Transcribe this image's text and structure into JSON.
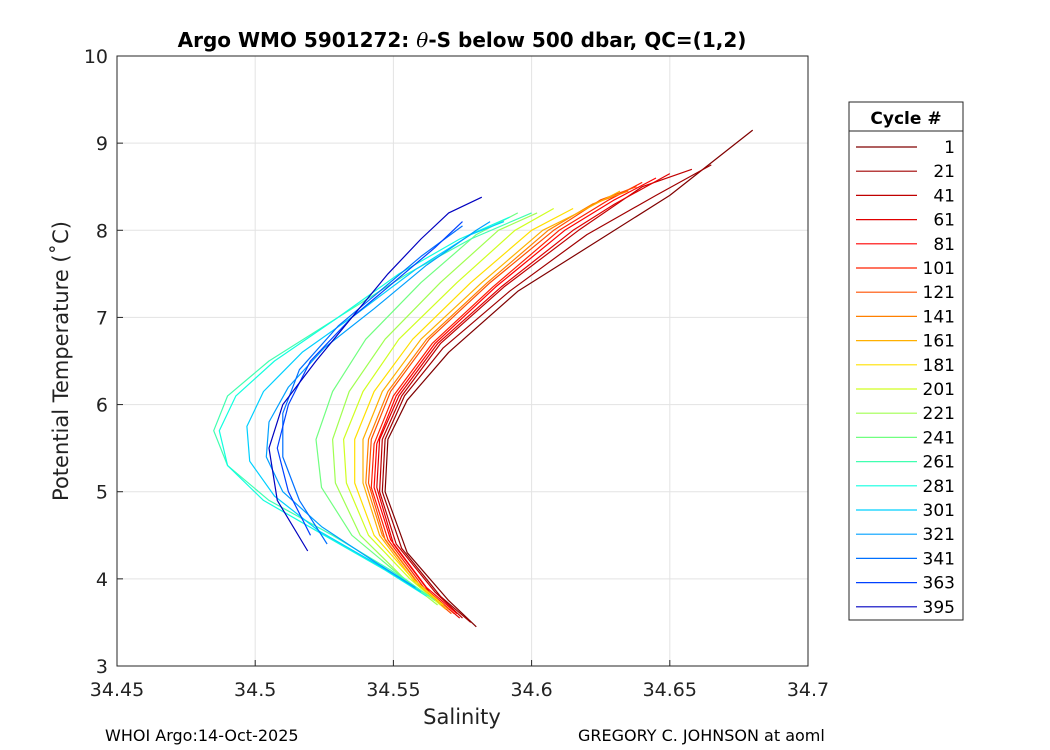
{
  "chart_data": {
    "type": "line",
    "title_prefix": "Argo WMO 5901272: ",
    "title_theta": "θ",
    "title_suffix": "-S below 500 dbar,  QC=(1,2)",
    "xlabel": "Salinity",
    "ylabel": "Potential Temperature (˚C)",
    "xlim": [
      34.45,
      34.7
    ],
    "ylim": [
      3,
      10
    ],
    "xticks": [
      34.45,
      34.5,
      34.55,
      34.6,
      34.65,
      34.7
    ],
    "xtick_labels": [
      "34.45",
      "34.5",
      "34.55",
      "34.6",
      "34.65",
      "34.7"
    ],
    "yticks": [
      3,
      4,
      5,
      6,
      7,
      8,
      9,
      10
    ],
    "ytick_labels": [
      "3",
      "4",
      "5",
      "6",
      "7",
      "8",
      "9",
      "10"
    ],
    "grid": true,
    "legend": {
      "title": "Cycle #",
      "placement": "right-outside",
      "entries": [
        {
          "label": "1",
          "color": "#800000"
        },
        {
          "label": "21",
          "color": "#a00000"
        },
        {
          "label": "41",
          "color": "#c00000"
        },
        {
          "label": "61",
          "color": "#e00000"
        },
        {
          "label": "81",
          "color": "#ff0000"
        },
        {
          "label": "101",
          "color": "#ff2000"
        },
        {
          "label": "121",
          "color": "#ff5000"
        },
        {
          "label": "141",
          "color": "#ff8000"
        },
        {
          "label": "161",
          "color": "#ffb000"
        },
        {
          "label": "181",
          "color": "#ffe000"
        },
        {
          "label": "201",
          "color": "#d0ff20"
        },
        {
          "label": "221",
          "color": "#a0ff50"
        },
        {
          "label": "241",
          "color": "#70ff80"
        },
        {
          "label": "261",
          "color": "#40ffb0"
        },
        {
          "label": "281",
          "color": "#10ffe0"
        },
        {
          "label": "301",
          "color": "#00d0ff"
        },
        {
          "label": "321",
          "color": "#00a0ff"
        },
        {
          "label": "341",
          "color": "#0070ff"
        },
        {
          "label": "363",
          "color": "#0040ff"
        },
        {
          "label": "395",
          "color": "#0000c0"
        }
      ]
    },
    "series": [
      {
        "name": "1",
        "color": "#800000",
        "points": [
          [
            34.58,
            3.45
          ],
          [
            34.57,
            3.75
          ],
          [
            34.555,
            4.3
          ],
          [
            34.547,
            5.0
          ],
          [
            34.548,
            5.6
          ],
          [
            34.555,
            6.05
          ],
          [
            34.57,
            6.6
          ],
          [
            34.595,
            7.3
          ],
          [
            34.625,
            7.9
          ],
          [
            34.65,
            8.4
          ],
          [
            34.68,
            9.15
          ]
        ]
      },
      {
        "name": "21",
        "color": "#a00000",
        "points": [
          [
            34.578,
            3.5
          ],
          [
            34.567,
            3.8
          ],
          [
            34.553,
            4.35
          ],
          [
            34.546,
            5.0
          ],
          [
            34.547,
            5.6
          ],
          [
            34.554,
            6.1
          ],
          [
            34.568,
            6.65
          ],
          [
            34.592,
            7.3
          ],
          [
            34.62,
            7.95
          ],
          [
            34.645,
            8.4
          ],
          [
            34.665,
            8.75
          ]
        ]
      },
      {
        "name": "41",
        "color": "#c00000",
        "points": [
          [
            34.575,
            3.55
          ],
          [
            34.565,
            3.85
          ],
          [
            34.551,
            4.4
          ],
          [
            34.545,
            5.0
          ],
          [
            34.546,
            5.6
          ],
          [
            34.553,
            6.1
          ],
          [
            34.567,
            6.7
          ],
          [
            34.59,
            7.35
          ],
          [
            34.617,
            8.0
          ],
          [
            34.64,
            8.5
          ],
          [
            34.658,
            8.7
          ]
        ]
      },
      {
        "name": "61",
        "color": "#e00000",
        "points": [
          [
            34.574,
            3.55
          ],
          [
            34.563,
            3.85
          ],
          [
            34.55,
            4.4
          ],
          [
            34.544,
            5.05
          ],
          [
            34.545,
            5.6
          ],
          [
            34.552,
            6.1
          ],
          [
            34.566,
            6.7
          ],
          [
            34.589,
            7.35
          ],
          [
            34.615,
            8.0
          ],
          [
            34.63,
            8.3
          ],
          [
            34.65,
            8.65
          ]
        ]
      },
      {
        "name": "81",
        "color": "#ff0000",
        "points": [
          [
            34.573,
            3.6
          ],
          [
            34.562,
            3.9
          ],
          [
            34.549,
            4.45
          ],
          [
            34.543,
            5.05
          ],
          [
            34.544,
            5.55
          ],
          [
            34.551,
            6.1
          ],
          [
            34.565,
            6.7
          ],
          [
            34.587,
            7.35
          ],
          [
            34.612,
            8.0
          ],
          [
            34.63,
            8.35
          ],
          [
            34.645,
            8.6
          ]
        ]
      },
      {
        "name": "101",
        "color": "#ff2000",
        "points": [
          [
            34.572,
            3.6
          ],
          [
            34.561,
            3.9
          ],
          [
            34.548,
            4.45
          ],
          [
            34.542,
            5.05
          ],
          [
            34.543,
            5.55
          ],
          [
            34.55,
            6.1
          ],
          [
            34.564,
            6.7
          ],
          [
            34.586,
            7.35
          ],
          [
            34.61,
            8.0
          ],
          [
            34.628,
            8.35
          ],
          [
            34.64,
            8.55
          ]
        ]
      },
      {
        "name": "121",
        "color": "#ff5000",
        "points": [
          [
            34.571,
            3.6
          ],
          [
            34.56,
            3.9
          ],
          [
            34.547,
            4.45
          ],
          [
            34.541,
            5.1
          ],
          [
            34.542,
            5.6
          ],
          [
            34.549,
            6.15
          ],
          [
            34.563,
            6.75
          ],
          [
            34.585,
            7.4
          ],
          [
            34.608,
            8.0
          ],
          [
            34.625,
            8.35
          ],
          [
            34.638,
            8.5
          ]
        ]
      },
      {
        "name": "141",
        "color": "#ff8000",
        "points": [
          [
            34.57,
            3.65
          ],
          [
            34.559,
            3.95
          ],
          [
            34.546,
            4.5
          ],
          [
            34.54,
            5.1
          ],
          [
            34.541,
            5.6
          ],
          [
            34.548,
            6.15
          ],
          [
            34.562,
            6.75
          ],
          [
            34.584,
            7.4
          ],
          [
            34.606,
            8.0
          ],
          [
            34.622,
            8.3
          ],
          [
            34.635,
            8.45
          ]
        ]
      },
      {
        "name": "161",
        "color": "#ffb000",
        "points": [
          [
            34.569,
            3.65
          ],
          [
            34.558,
            3.95
          ],
          [
            34.545,
            4.5
          ],
          [
            34.539,
            5.1
          ],
          [
            34.539,
            5.6
          ],
          [
            34.546,
            6.15
          ],
          [
            34.56,
            6.75
          ],
          [
            34.582,
            7.4
          ],
          [
            34.604,
            8.0
          ],
          [
            34.62,
            8.25
          ],
          [
            34.632,
            8.45
          ]
        ]
      },
      {
        "name": "181",
        "color": "#ffe000",
        "points": [
          [
            34.568,
            3.7
          ],
          [
            34.557,
            4.0
          ],
          [
            34.543,
            4.5
          ],
          [
            34.536,
            5.1
          ],
          [
            34.536,
            5.6
          ],
          [
            34.543,
            6.15
          ],
          [
            34.557,
            6.75
          ],
          [
            34.578,
            7.4
          ],
          [
            34.6,
            8.0
          ],
          [
            34.615,
            8.25
          ]
        ]
      },
      {
        "name": "201",
        "color": "#d0ff20",
        "points": [
          [
            34.567,
            3.7
          ],
          [
            34.556,
            4.0
          ],
          [
            34.541,
            4.5
          ],
          [
            34.533,
            5.1
          ],
          [
            34.532,
            5.6
          ],
          [
            34.539,
            6.15
          ],
          [
            34.552,
            6.75
          ],
          [
            34.573,
            7.4
          ],
          [
            34.594,
            8.0
          ],
          [
            34.608,
            8.25
          ]
        ]
      },
      {
        "name": "221",
        "color": "#a0ff50",
        "points": [
          [
            34.566,
            3.7
          ],
          [
            34.554,
            4.0
          ],
          [
            34.538,
            4.5
          ],
          [
            34.529,
            5.1
          ],
          [
            34.528,
            5.6
          ],
          [
            34.534,
            6.15
          ],
          [
            34.547,
            6.75
          ],
          [
            34.567,
            7.4
          ],
          [
            34.588,
            8.0
          ],
          [
            34.602,
            8.2
          ]
        ]
      },
      {
        "name": "241",
        "color": "#70ff80",
        "points": [
          [
            34.565,
            3.75
          ],
          [
            34.552,
            4.05
          ],
          [
            34.535,
            4.5
          ],
          [
            34.524,
            5.05
          ],
          [
            34.522,
            5.6
          ],
          [
            34.528,
            6.15
          ],
          [
            34.54,
            6.75
          ],
          [
            34.56,
            7.4
          ],
          [
            34.58,
            7.95
          ],
          [
            34.595,
            8.2
          ]
        ]
      },
      {
        "name": "261",
        "color": "#40ffb0",
        "points": [
          [
            34.563,
            3.8
          ],
          [
            34.549,
            4.1
          ],
          [
            34.528,
            4.5
          ],
          [
            34.505,
            4.9
          ],
          [
            34.49,
            5.3
          ],
          [
            34.485,
            5.7
          ],
          [
            34.49,
            6.1
          ],
          [
            34.505,
            6.5
          ],
          [
            34.53,
            7.0
          ],
          [
            34.555,
            7.5
          ],
          [
            34.578,
            7.9
          ],
          [
            34.6,
            8.2
          ]
        ]
      },
      {
        "name": "281",
        "color": "#10ffe0",
        "points": [
          [
            34.562,
            3.8
          ],
          [
            34.547,
            4.1
          ],
          [
            34.525,
            4.5
          ],
          [
            34.503,
            4.9
          ],
          [
            34.49,
            5.3
          ],
          [
            34.487,
            5.7
          ],
          [
            34.493,
            6.1
          ],
          [
            34.507,
            6.5
          ],
          [
            34.53,
            7.0
          ],
          [
            34.552,
            7.5
          ],
          [
            34.574,
            7.9
          ],
          [
            34.592,
            8.15
          ]
        ]
      },
      {
        "name": "301",
        "color": "#00d0ff",
        "points": [
          [
            34.56,
            3.85
          ],
          [
            34.545,
            4.15
          ],
          [
            34.523,
            4.55
          ],
          [
            34.507,
            4.95
          ],
          [
            34.498,
            5.35
          ],
          [
            34.497,
            5.75
          ],
          [
            34.503,
            6.15
          ],
          [
            34.517,
            6.6
          ],
          [
            34.537,
            7.05
          ],
          [
            34.558,
            7.55
          ],
          [
            34.578,
            7.95
          ],
          [
            34.59,
            8.1
          ]
        ]
      },
      {
        "name": "321",
        "color": "#00a0ff",
        "points": [
          [
            34.558,
            3.9
          ],
          [
            34.543,
            4.2
          ],
          [
            34.524,
            4.6
          ],
          [
            34.51,
            5.0
          ],
          [
            34.504,
            5.4
          ],
          [
            34.505,
            5.8
          ],
          [
            34.512,
            6.2
          ],
          [
            34.525,
            6.65
          ],
          [
            34.543,
            7.1
          ],
          [
            34.562,
            7.6
          ],
          [
            34.58,
            8.0
          ],
          [
            34.585,
            8.1
          ]
        ]
      },
      {
        "name": "341",
        "color": "#0070ff",
        "points": [
          [
            34.526,
            4.4
          ],
          [
            34.516,
            4.9
          ],
          [
            34.51,
            5.4
          ],
          [
            34.51,
            5.9
          ],
          [
            34.516,
            6.4
          ],
          [
            34.53,
            6.9
          ],
          [
            34.545,
            7.3
          ],
          [
            34.56,
            7.7
          ],
          [
            34.575,
            8.05
          ]
        ]
      },
      {
        "name": "363",
        "color": "#0040ff",
        "points": [
          [
            34.52,
            4.5
          ],
          [
            34.512,
            5.0
          ],
          [
            34.508,
            5.5
          ],
          [
            34.512,
            6.0
          ],
          [
            34.52,
            6.5
          ],
          [
            34.535,
            7.0
          ],
          [
            34.55,
            7.4
          ],
          [
            34.565,
            7.8
          ],
          [
            34.575,
            8.1
          ]
        ]
      },
      {
        "name": "395",
        "color": "#0000c0",
        "points": [
          [
            34.519,
            4.32
          ],
          [
            34.508,
            4.9
          ],
          [
            34.505,
            5.5
          ],
          [
            34.51,
            6.0
          ],
          [
            34.522,
            6.5
          ],
          [
            34.535,
            7.0
          ],
          [
            34.548,
            7.5
          ],
          [
            34.56,
            7.9
          ],
          [
            34.57,
            8.2
          ],
          [
            34.582,
            8.38
          ]
        ]
      }
    ]
  },
  "footer": {
    "left": "WHOI Argo:14-Oct-2025",
    "right": "GREGORY C. JOHNSON at aoml"
  }
}
